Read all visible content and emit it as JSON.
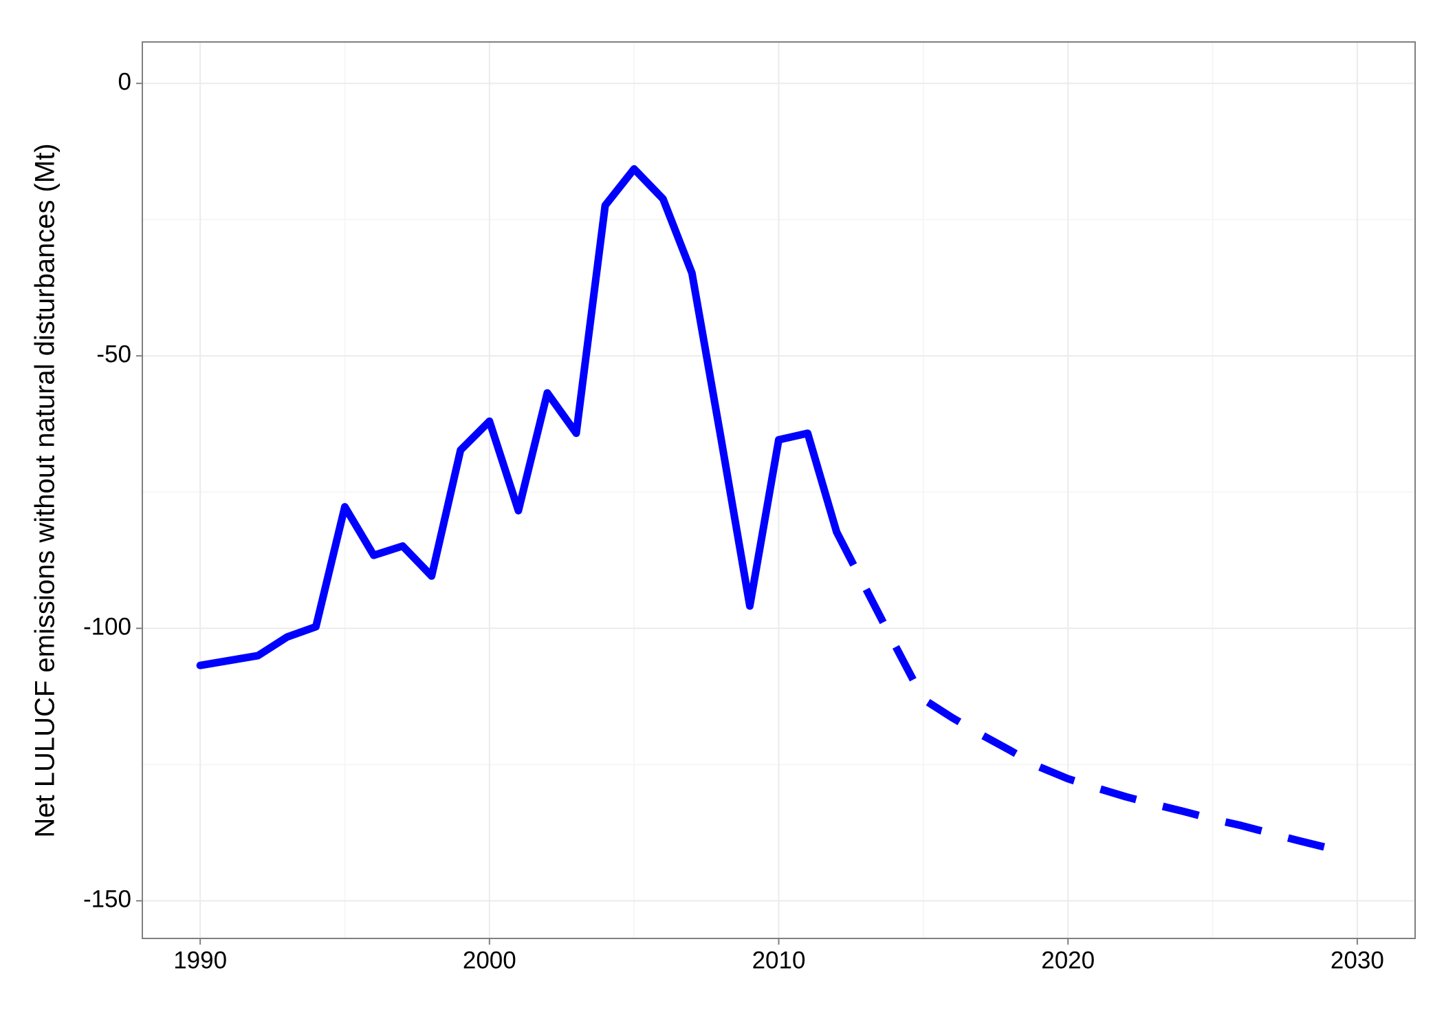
{
  "chart_data": {
    "type": "line",
    "ylabel": "Net LULUCF emissions without natural disturbances (Mt)",
    "x": [
      1990,
      1991,
      1992,
      1993,
      1994,
      1995,
      1996,
      1997,
      1998,
      1999,
      2000,
      2001,
      2002,
      2003,
      2004,
      2005,
      2006,
      2007,
      2008,
      2009,
      2010,
      2011,
      2012,
      2013,
      2014,
      2015,
      2016,
      2017,
      2018,
      2019,
      2020,
      2021,
      2022,
      2023,
      2024,
      2025,
      2026,
      2027,
      2028,
      2029
    ],
    "series": [
      {
        "color": "#0000ff",
        "dashed": false,
        "values": [
          -106.8,
          -105.9,
          -105.0,
          -101.6,
          -99.7,
          -77.7,
          -86.6,
          -84.9,
          -90.4,
          -67.3,
          -62.0,
          -78.4,
          -56.8,
          -64.2,
          -22.4,
          -15.7,
          -21.2,
          -34.8,
          -65.0,
          -95.9,
          -65.4,
          -64.2,
          -82.3,
          null,
          null,
          null,
          null,
          null,
          null,
          null,
          null,
          null,
          null,
          null,
          null,
          null,
          null,
          null,
          null,
          null
        ]
      },
      {
        "color": "#0000ff",
        "dashed": true,
        "values": [
          null,
          null,
          null,
          null,
          null,
          null,
          null,
          null,
          null,
          null,
          null,
          null,
          null,
          null,
          null,
          null,
          null,
          null,
          null,
          null,
          null,
          null,
          -82.3,
          -92.6,
          -102.9,
          -113.0,
          -116.4,
          -119.5,
          -122.4,
          -125.4,
          -127.6,
          -129.3,
          -130.9,
          -132.3,
          -133.6,
          -135.0,
          -136.2,
          -137.6,
          -139.0,
          -140.3
        ]
      }
    ],
    "xlim": [
      1988,
      2032
    ],
    "xticks": [
      1990,
      2000,
      2010,
      2020,
      2030
    ],
    "ylim": [
      -156.9,
      7.6
    ],
    "yticks": [
      0,
      -50,
      -100,
      -150
    ],
    "grid": true
  }
}
